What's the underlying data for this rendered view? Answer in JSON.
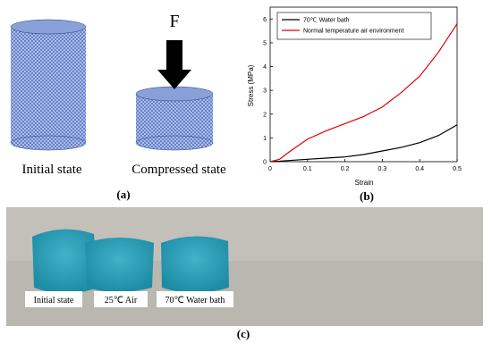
{
  "panel_a": {
    "force_label": "F",
    "labels": [
      "Initial state",
      "Compressed state"
    ],
    "caption": "(a)"
  },
  "chart_data": {
    "type": "line",
    "caption": "(b)",
    "xlabel": "Strain",
    "ylabel": "Stress (MPa)",
    "x": [
      0,
      0.025,
      0.05,
      0.1,
      0.15,
      0.2,
      0.25,
      0.3,
      0.35,
      0.4,
      0.45,
      0.5
    ],
    "series": [
      {
        "name": "70℃ Water bath",
        "color": "#000000",
        "values": [
          0,
          0.02,
          0.05,
          0.1,
          0.15,
          0.2,
          0.3,
          0.45,
          0.6,
          0.8,
          1.1,
          1.55
        ]
      },
      {
        "name": "Normal temperature air environment",
        "color": "#e00000",
        "values": [
          0,
          0.1,
          0.4,
          0.95,
          1.3,
          1.6,
          1.9,
          2.3,
          2.9,
          3.6,
          4.6,
          5.8
        ]
      }
    ],
    "xlim": [
      0,
      0.5
    ],
    "xticks": [
      0,
      0.1,
      0.2,
      0.3,
      0.4,
      0.5
    ],
    "ylim": [
      0,
      6.5
    ],
    "yticks": [
      0,
      1,
      2,
      3,
      4,
      5,
      6
    ],
    "legend": "upper-left"
  },
  "panel_c": {
    "labels": [
      "Initial state",
      "25℃ Air",
      "70℃ Water bath"
    ],
    "caption": "(c)"
  }
}
